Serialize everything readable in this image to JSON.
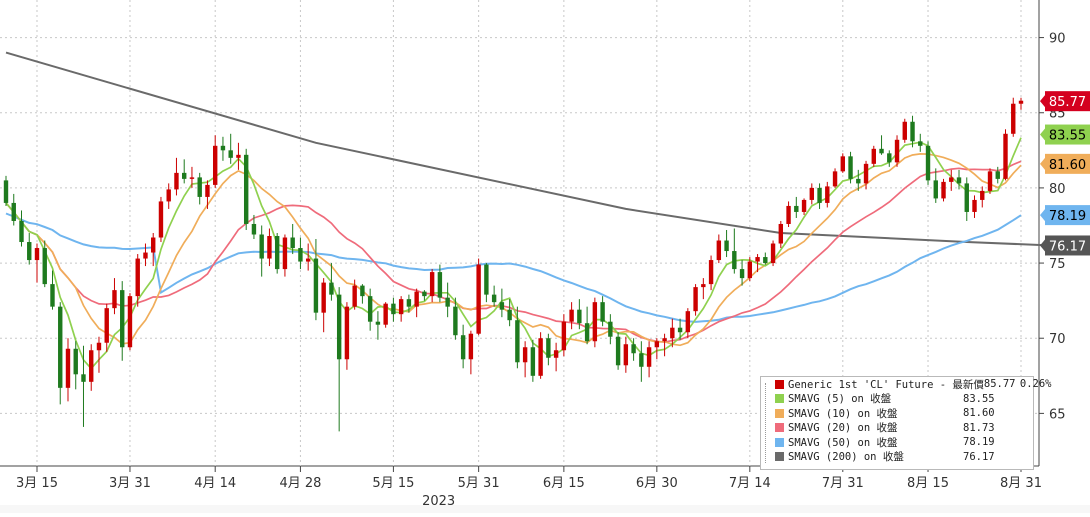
{
  "chart_data": {
    "type": "candlestick",
    "title": "",
    "x_year_label": "2023",
    "y_ticks": [
      65,
      70,
      75,
      80,
      85,
      90
    ],
    "ylim": [
      61.5,
      92.5
    ],
    "x_tick_labels": [
      "3月 15",
      "3月 31",
      "4月 14",
      "4月 28",
      "5月 15",
      "5月 31",
      "6月 15",
      "6月 30",
      "7月 14",
      "7月 31",
      "8月 15",
      "8月 31"
    ],
    "grid": true,
    "legend_position": "bottom-right",
    "candles": [
      [
        80.5,
        80.8,
        78.8,
        79.0
      ],
      [
        79.0,
        79.6,
        77.5,
        77.8
      ],
      [
        77.8,
        78.5,
        76.1,
        76.4
      ],
      [
        76.4,
        77.0,
        74.9,
        75.2
      ],
      [
        75.2,
        76.3,
        73.7,
        76.0
      ],
      [
        76.0,
        76.5,
        73.4,
        73.6
      ],
      [
        73.6,
        74.5,
        71.9,
        72.1
      ],
      [
        72.1,
        72.4,
        65.6,
        66.7
      ],
      [
        66.7,
        70.0,
        65.8,
        69.3
      ],
      [
        69.3,
        69.8,
        66.6,
        67.6
      ],
      [
        67.6,
        69.5,
        64.1,
        67.1
      ],
      [
        67.1,
        69.6,
        66.5,
        69.2
      ],
      [
        69.2,
        70.1,
        67.7,
        69.7
      ],
      [
        69.7,
        72.3,
        69.1,
        72.0
      ],
      [
        72.0,
        74.0,
        71.6,
        73.2
      ],
      [
        73.2,
        73.8,
        68.5,
        69.4
      ],
      [
        69.4,
        73.0,
        69.2,
        72.8
      ],
      [
        72.8,
        75.6,
        72.1,
        75.3
      ],
      [
        75.3,
        76.3,
        74.8,
        75.7
      ],
      [
        75.7,
        77.0,
        74.8,
        76.7
      ],
      [
        76.7,
        79.4,
        76.4,
        79.1
      ],
      [
        79.1,
        80.3,
        78.6,
        79.9
      ],
      [
        79.9,
        82.0,
        79.5,
        81.0
      ],
      [
        81.0,
        81.9,
        80.3,
        80.6
      ],
      [
        80.6,
        81.4,
        80.0,
        80.7
      ],
      [
        80.7,
        81.0,
        78.9,
        79.4
      ],
      [
        79.4,
        80.5,
        78.6,
        80.2
      ],
      [
        80.2,
        83.5,
        80.0,
        82.8
      ],
      [
        82.8,
        83.4,
        81.8,
        82.5
      ],
      [
        82.5,
        83.6,
        81.6,
        82.0
      ],
      [
        82.0,
        83.0,
        81.2,
        82.2
      ],
      [
        82.2,
        82.6,
        77.2,
        77.6
      ],
      [
        77.6,
        78.2,
        76.6,
        76.9
      ],
      [
        76.9,
        77.5,
        74.1,
        75.3
      ],
      [
        75.3,
        77.3,
        74.8,
        76.8
      ],
      [
        76.8,
        77.0,
        74.3,
        74.6
      ],
      [
        74.6,
        76.9,
        74.1,
        76.7
      ],
      [
        76.7,
        77.6,
        75.6,
        76.0
      ],
      [
        76.0,
        76.7,
        74.6,
        75.1
      ],
      [
        75.1,
        76.3,
        74.5,
        75.3
      ],
      [
        75.3,
        76.6,
        71.2,
        71.7
      ],
      [
        71.7,
        74.0,
        70.4,
        73.7
      ],
      [
        73.7,
        75.0,
        72.5,
        72.9
      ],
      [
        72.9,
        73.4,
        63.8,
        68.6
      ],
      [
        68.6,
        72.4,
        67.9,
        72.1
      ],
      [
        72.1,
        73.9,
        71.9,
        73.5
      ],
      [
        73.5,
        73.6,
        72.3,
        72.8
      ],
      [
        72.8,
        73.3,
        70.5,
        71.1
      ],
      [
        71.1,
        71.8,
        69.9,
        70.9
      ],
      [
        70.9,
        72.4,
        70.7,
        72.3
      ],
      [
        72.3,
        72.7,
        71.1,
        71.6
      ],
      [
        71.6,
        72.8,
        71.1,
        72.6
      ],
      [
        72.6,
        72.9,
        71.7,
        72.1
      ],
      [
        72.1,
        73.3,
        71.4,
        73.1
      ],
      [
        73.1,
        73.2,
        72.5,
        72.8
      ],
      [
        72.8,
        74.6,
        72.4,
        74.4
      ],
      [
        74.4,
        74.9,
        72.4,
        72.7
      ],
      [
        72.7,
        73.7,
        71.4,
        72.1
      ],
      [
        72.1,
        72.7,
        69.9,
        70.2
      ],
      [
        70.2,
        70.9,
        68.0,
        68.6
      ],
      [
        68.6,
        70.5,
        67.6,
        70.3
      ],
      [
        70.3,
        75.3,
        70.2,
        74.9
      ],
      [
        74.9,
        75.0,
        72.4,
        72.9
      ],
      [
        72.9,
        73.5,
        72.1,
        72.4
      ],
      [
        72.4,
        73.3,
        71.4,
        71.9
      ],
      [
        71.9,
        72.6,
        70.8,
        71.2
      ],
      [
        71.2,
        72.1,
        68.0,
        68.4
      ],
      [
        68.4,
        69.8,
        67.4,
        69.4
      ],
      [
        69.4,
        69.9,
        67.1,
        67.5
      ],
      [
        67.5,
        70.4,
        67.3,
        70.0
      ],
      [
        70.0,
        70.3,
        68.2,
        68.7
      ],
      [
        68.7,
        69.7,
        67.8,
        69.2
      ],
      [
        69.2,
        71.6,
        68.8,
        71.1
      ],
      [
        71.1,
        72.4,
        70.6,
        71.9
      ],
      [
        71.9,
        72.6,
        70.6,
        71.0
      ],
      [
        71.0,
        72.1,
        69.6,
        69.8
      ],
      [
        69.8,
        72.7,
        69.4,
        72.4
      ],
      [
        72.4,
        72.8,
        70.8,
        71.1
      ],
      [
        71.1,
        71.6,
        69.6,
        70.1
      ],
      [
        70.1,
        70.4,
        67.9,
        68.2
      ],
      [
        68.2,
        70.1,
        67.7,
        69.6
      ],
      [
        69.6,
        70.0,
        68.5,
        69.0
      ],
      [
        69.0,
        69.8,
        67.1,
        68.1
      ],
      [
        68.1,
        69.8,
        67.4,
        69.4
      ],
      [
        69.4,
        70.0,
        68.6,
        69.8
      ],
      [
        69.8,
        70.3,
        68.8,
        70.0
      ],
      [
        70.0,
        71.3,
        69.4,
        70.7
      ],
      [
        70.7,
        71.3,
        69.9,
        70.4
      ],
      [
        70.4,
        72.0,
        70.0,
        71.8
      ],
      [
        71.8,
        73.6,
        71.5,
        73.4
      ],
      [
        73.4,
        74.0,
        72.6,
        73.6
      ],
      [
        73.6,
        75.5,
        73.2,
        75.2
      ],
      [
        75.2,
        76.9,
        75.0,
        76.5
      ],
      [
        76.5,
        77.2,
        75.4,
        75.8
      ],
      [
        75.8,
        77.3,
        74.3,
        74.6
      ],
      [
        74.6,
        75.2,
        73.5,
        74.0
      ],
      [
        74.0,
        75.4,
        73.8,
        75.1
      ],
      [
        75.1,
        75.6,
        74.4,
        75.4
      ],
      [
        75.4,
        75.7,
        74.9,
        75.0
      ],
      [
        75.0,
        76.5,
        74.8,
        76.3
      ],
      [
        76.3,
        77.8,
        76.0,
        77.6
      ],
      [
        77.6,
        79.1,
        77.4,
        78.8
      ],
      [
        78.8,
        79.4,
        78.0,
        78.4
      ],
      [
        78.4,
        79.3,
        78.2,
        79.2
      ],
      [
        79.2,
        80.3,
        78.9,
        80.0
      ],
      [
        80.0,
        80.3,
        78.6,
        79.0
      ],
      [
        79.0,
        80.4,
        78.7,
        80.1
      ],
      [
        80.1,
        81.3,
        80.0,
        81.1
      ],
      [
        81.1,
        82.3,
        81.0,
        82.1
      ],
      [
        82.1,
        82.4,
        80.3,
        80.6
      ],
      [
        80.6,
        81.2,
        79.8,
        80.3
      ],
      [
        80.3,
        81.8,
        79.9,
        81.6
      ],
      [
        81.6,
        82.8,
        81.4,
        82.6
      ],
      [
        82.6,
        83.5,
        82.2,
        82.3
      ],
      [
        82.3,
        82.5,
        81.4,
        81.7
      ],
      [
        81.7,
        83.5,
        81.4,
        83.2
      ],
      [
        83.2,
        84.6,
        83.0,
        84.4
      ],
      [
        84.4,
        84.8,
        82.7,
        83.1
      ],
      [
        83.1,
        83.6,
        82.4,
        82.8
      ],
      [
        82.8,
        83.1,
        80.2,
        80.5
      ],
      [
        80.5,
        81.3,
        79.0,
        79.3
      ],
      [
        79.3,
        80.6,
        79.1,
        80.4
      ],
      [
        80.4,
        81.2,
        79.8,
        80.7
      ],
      [
        80.7,
        81.2,
        79.9,
        80.3
      ],
      [
        80.3,
        80.7,
        77.8,
        78.4
      ],
      [
        78.4,
        79.5,
        78.0,
        79.2
      ],
      [
        79.2,
        80.1,
        78.7,
        79.8
      ],
      [
        79.8,
        81.3,
        79.6,
        81.1
      ],
      [
        81.1,
        81.4,
        80.3,
        80.6
      ],
      [
        80.6,
        83.9,
        80.5,
        83.6
      ],
      [
        83.6,
        86.0,
        83.4,
        85.6
      ],
      [
        85.6,
        86.0,
        85.2,
        85.8
      ]
    ],
    "series": [
      {
        "name": "Generic 1st 'CL' Future - 最新價",
        "last": "85.77",
        "change": "0.26%",
        "color": "#cc0000"
      },
      {
        "name": "SMAVG (5)  on 收盤",
        "last": "83.55",
        "color": "#8fd14f"
      },
      {
        "name": "SMAVG (10)  on 收盤",
        "last": "81.60",
        "color": "#f0ad5a"
      },
      {
        "name": "SMAVG (20)  on 收盤",
        "last": "81.73",
        "color": "#ef6b7b"
      },
      {
        "name": "SMAVG (50)  on 收盤",
        "last": "78.19",
        "color": "#6fb5ef"
      },
      {
        "name": "SMAVG (200)  on 收盤",
        "last": "76.17",
        "color": "#6a6a6a"
      }
    ],
    "sma200": [
      [
        0,
        89.0
      ],
      [
        40,
        83.0
      ],
      [
        80,
        78.6
      ],
      [
        100,
        77.0
      ],
      [
        124,
        76.4
      ],
      [
        135,
        76.17
      ]
    ],
    "right_labels": [
      {
        "text": "85.77",
        "bg": "#d4001f",
        "fg": "#ffffff",
        "value": 85.77
      },
      {
        "text": "83.55",
        "bg": "#8fd14f",
        "fg": "#000000",
        "value": 83.55
      },
      {
        "text": "81.60",
        "bg": "#f0ad5a",
        "fg": "#000000",
        "value": 81.6
      },
      {
        "text": "78.19",
        "bg": "#6fb5ef",
        "fg": "#000000",
        "value": 78.19
      },
      {
        "text": "76.17",
        "bg": "#555555",
        "fg": "#ffffff",
        "value": 76.17
      }
    ],
    "up_color": "#cc0000",
    "down_color": "#1e7a1e"
  }
}
